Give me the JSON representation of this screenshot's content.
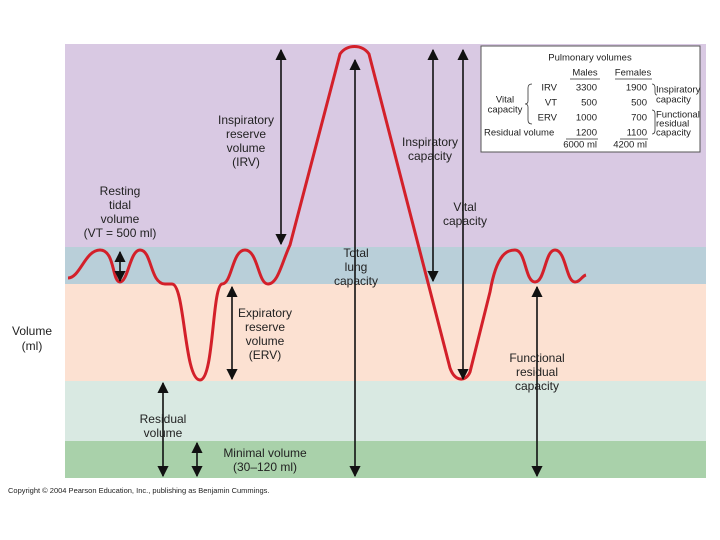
{
  "axis_label": [
    "Volume",
    "(ml)"
  ],
  "annotations": {
    "irv": [
      "Inspiratory",
      "reserve",
      "volume",
      "(IRV)"
    ],
    "tidal": [
      "Resting",
      "tidal",
      "volume",
      "(VT = 500 ml)"
    ],
    "inspiratory_capacity": [
      "Inspiratory",
      "capacity"
    ],
    "vital_capacity": [
      "Vital",
      "capacity"
    ],
    "total_lung_capacity": [
      "Total",
      "lung",
      "capacity"
    ],
    "erv": [
      "Expiratory",
      "reserve",
      "volume",
      "(ERV)"
    ],
    "functional_residual_capacity": [
      "Functional",
      "residual",
      "capacity"
    ],
    "residual_volume": [
      "Residual",
      "volume"
    ],
    "minimal_volume": [
      "Minimal volume",
      "(30–120 ml)"
    ]
  },
  "table": {
    "title": "Pulmonary volumes",
    "headers": [
      "Males",
      "Females"
    ],
    "rows": [
      [
        "IRV",
        "3300",
        "1900"
      ],
      [
        "VT",
        "500",
        "500"
      ],
      [
        "ERV",
        "1000",
        "700"
      ],
      [
        "Residual volume",
        "1200",
        "1100"
      ],
      [
        "",
        "6000 ml",
        "4200 ml"
      ]
    ],
    "vital_capacity": [
      "Vital",
      "capacity"
    ],
    "inspiratory_capacity": [
      "Inspiratory",
      "capacity"
    ],
    "functional_residual_capacity": [
      "Functional",
      "residual",
      "capacity"
    ]
  },
  "footer": "Copyright © 2004 Pearson Education, Inc., publishing as Benjamin Cummings."
}
